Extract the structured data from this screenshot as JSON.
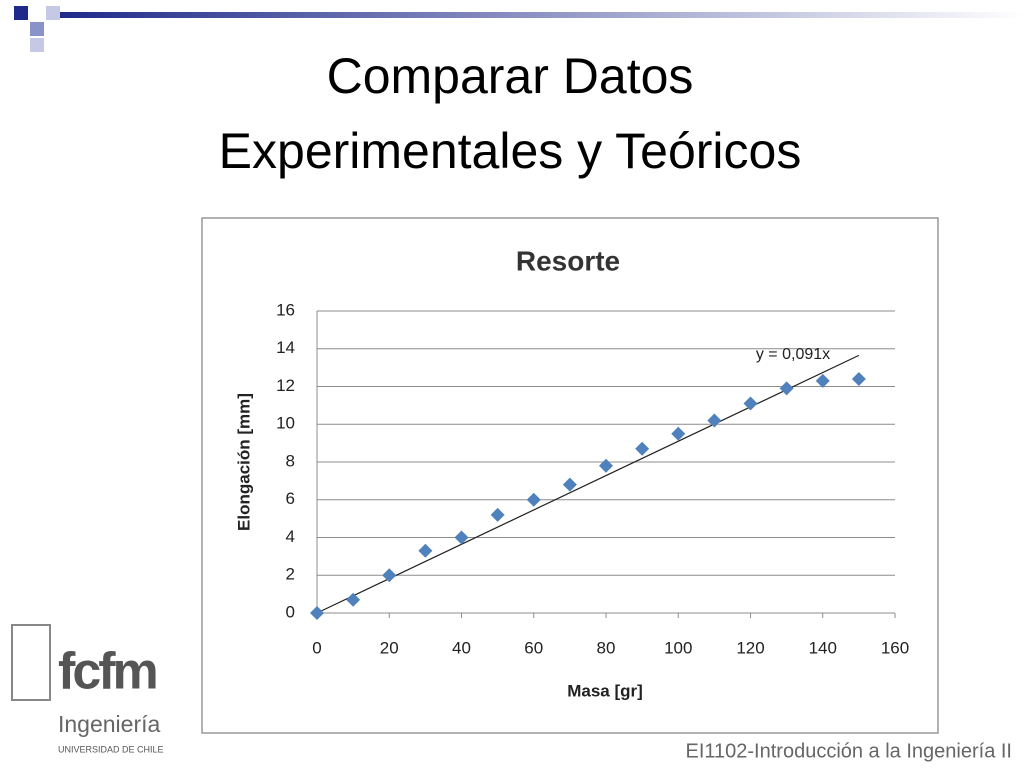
{
  "slide": {
    "title_lines": [
      "Comparar Datos",
      "Experimentales y Teóricos"
    ],
    "footer": "EI1102-Introducción a la Ingeniería II",
    "logo": {
      "name": "fcfm",
      "faculty": "Ingeniería",
      "university": "UNIVERSIDAD DE CHILE"
    }
  },
  "chart_data": {
    "type": "scatter",
    "title": "Resorte",
    "x_label": "Masa [gr]",
    "y_label": "Elongación [mm]",
    "x": [
      0,
      10,
      20,
      30,
      40,
      50,
      60,
      70,
      80,
      90,
      100,
      110,
      120,
      130,
      140,
      150
    ],
    "values": [
      0,
      0.7,
      2.0,
      3.3,
      4.0,
      5.2,
      6.0,
      6.8,
      7.8,
      8.7,
      9.5,
      10.2,
      11.1,
      11.9,
      12.3,
      12.4
    ],
    "color": "#4f81bd",
    "trendline": {
      "label": "y = 0,091x",
      "slope": 0.091
    },
    "xlim": [
      0,
      160
    ],
    "xticks": [
      0,
      20,
      40,
      60,
      80,
      100,
      120,
      140,
      160
    ],
    "ylim": [
      0,
      16
    ],
    "yticks": [
      0,
      2,
      4,
      6,
      8,
      10,
      12,
      14,
      16
    ],
    "grid": true
  }
}
